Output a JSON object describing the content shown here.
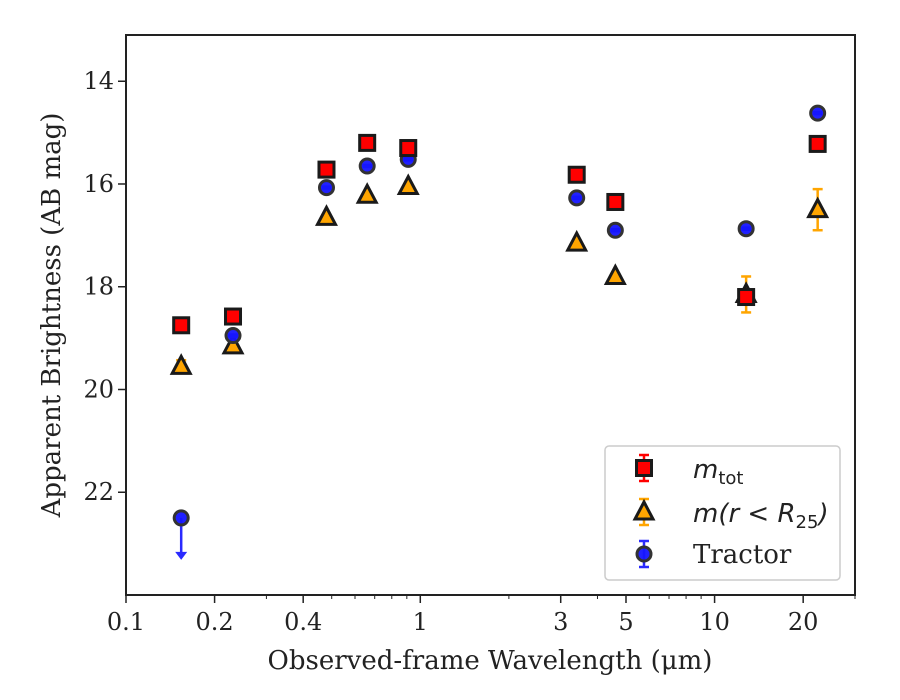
{
  "chart_data": {
    "type": "scatter",
    "xlabel": "Observed-frame Wavelength (μm)",
    "ylabel": "Apparent Brightness (AB mag)",
    "xscale": "log",
    "xlim": [
      0.1,
      30
    ],
    "ylim": [
      13.1,
      24
    ],
    "y_inverted": true,
    "x_ticks": [
      0.1,
      0.2,
      0.4,
      1,
      3,
      5,
      10,
      20
    ],
    "x_tick_labels": [
      "0.1",
      "0.2",
      "0.4",
      "1",
      "3",
      "5",
      "10",
      "20"
    ],
    "y_ticks": [
      14,
      16,
      18,
      20,
      22
    ],
    "y_tick_labels": [
      "14",
      "16",
      "18",
      "20",
      "22"
    ],
    "grid": false,
    "legend_position": "bottom-right",
    "series": [
      {
        "name_parts": {
          "base": "m",
          "sub": "tot"
        },
        "marker": "square",
        "color": "#ff0000",
        "edge_color": "#1a1a1a",
        "error_color": "#ff0000",
        "x": [
          0.154,
          0.231,
          0.48,
          0.66,
          0.91,
          3.4,
          4.6,
          12.8,
          22.4
        ],
        "y": [
          18.75,
          18.58,
          15.72,
          15.2,
          15.3,
          15.82,
          16.35,
          18.2,
          15.22
        ],
        "yerr": [
          0.05,
          0.05,
          0.02,
          0.02,
          0.02,
          0.02,
          0.02,
          0.05,
          0.05
        ]
      },
      {
        "name_parts": {
          "base": "m(r < R",
          "sub": "25",
          "tail": ")"
        },
        "marker": "triangle",
        "color": "#ffa500",
        "edge_color": "#1a1a1a",
        "error_color": "#ffa500",
        "x": [
          0.154,
          0.231,
          0.48,
          0.66,
          0.91,
          3.4,
          4.6,
          12.8,
          22.4
        ],
        "y": [
          19.55,
          19.15,
          16.65,
          16.22,
          16.05,
          17.15,
          17.8,
          18.15,
          16.5
        ],
        "yerr": [
          0.12,
          0.05,
          0.04,
          0.03,
          0.03,
          0.03,
          0.04,
          0.35,
          0.4
        ]
      },
      {
        "name": "Tractor",
        "marker": "circle",
        "color": "#1515ff",
        "edge_color": "#333333",
        "error_color": "#2a2aff",
        "x": [
          0.154,
          0.231,
          0.48,
          0.66,
          0.91,
          3.4,
          4.6,
          12.8,
          22.4
        ],
        "y": [
          22.5,
          18.95,
          16.07,
          15.65,
          15.52,
          16.27,
          16.9,
          16.87,
          14.62
        ],
        "yerr": [
          0.02,
          0.02,
          0.02,
          0.02,
          0.02,
          0.02,
          0.02,
          0.02,
          0.02
        ],
        "upper_limit_index": 0
      }
    ]
  }
}
